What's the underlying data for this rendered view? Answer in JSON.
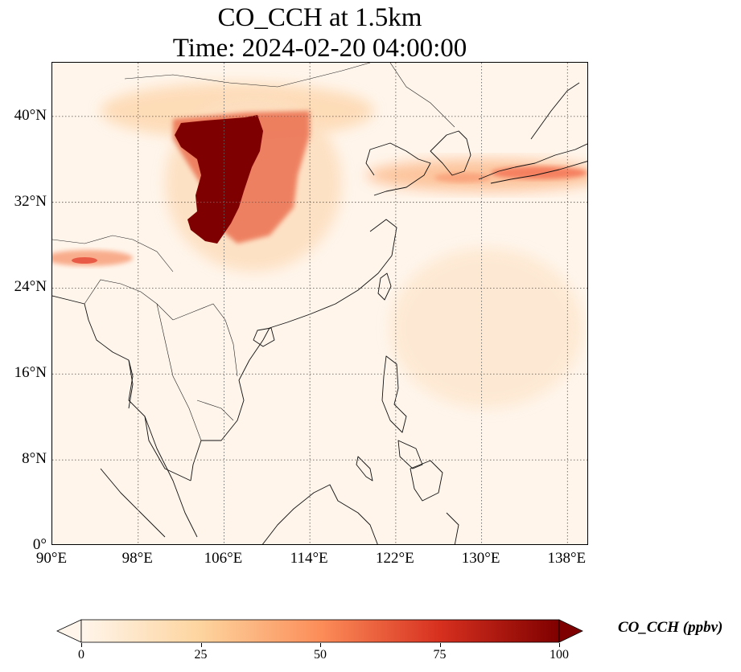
{
  "title": {
    "line1": "CO_CCH at 1.5km",
    "line2": "Time: 2024-02-20 04:00:00"
  },
  "map": {
    "extent": {
      "lon_min": 90,
      "lon_max": 140,
      "lat_min": 0,
      "lat_max": 45
    },
    "lat_ticks": [
      "0°",
      "8°N",
      "16°N",
      "24°N",
      "32°N",
      "40°N"
    ],
    "lon_ticks": [
      "90°E",
      "98°E",
      "106°E",
      "114°E",
      "122°E",
      "130°E",
      "138°E"
    ],
    "gridlines": "dotted",
    "variable": "CO_CCH",
    "colormap": "OrRd",
    "features": [
      {
        "name": "high-co-plume",
        "peak": "above 100",
        "region": "southwest to north China"
      },
      {
        "name": "east-asia-outflow",
        "peak": "around 55",
        "region": "Yellow Sea to Japan"
      },
      {
        "name": "himalaya-foothill-band",
        "peak": "around 45",
        "region": "northeast India"
      }
    ]
  },
  "colorbar": {
    "ticks": [
      "0",
      "25",
      "50",
      "75",
      "100"
    ],
    "label": "CO_CCH (ppbv)",
    "extend": "both",
    "colors": [
      "#fff5eb",
      "#fdd49e",
      "#fc8d59",
      "#d7301f",
      "#7f0000"
    ]
  }
}
